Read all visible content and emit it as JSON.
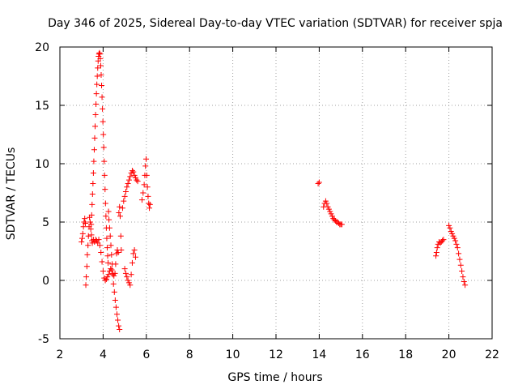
{
  "chart_data": {
    "type": "scatter",
    "title": "Day 346 of 2025, Sidereal Day-to-day VTEC variation (SDTVAR) for receiver spja",
    "xlabel": "GPS time / hours",
    "ylabel": "SDTVAR / TECUs",
    "xlim": [
      2,
      22
    ],
    "ylim": [
      -5,
      20
    ],
    "xticks": [
      "2",
      "4",
      "6",
      "8",
      "10",
      "12",
      "14",
      "16",
      "18",
      "20",
      "22"
    ],
    "yticks": [
      "-5",
      "0",
      "5",
      "10",
      "15",
      "20"
    ],
    "grid": true,
    "marker": "plus",
    "color": "#ff0000",
    "series": [
      {
        "name": "SDTVAR",
        "points": [
          [
            3.0,
            3.3
          ],
          [
            3.03,
            3.6
          ],
          [
            3.06,
            4.0
          ],
          [
            3.09,
            4.6
          ],
          [
            3.12,
            5.0
          ],
          [
            3.15,
            5.3
          ],
          [
            3.18,
            4.9
          ],
          [
            3.2,
            -0.4
          ],
          [
            3.22,
            0.3
          ],
          [
            3.25,
            1.2
          ],
          [
            3.27,
            2.2
          ],
          [
            3.3,
            3.0
          ],
          [
            3.32,
            3.8
          ],
          [
            3.35,
            4.6
          ],
          [
            3.37,
            5.4
          ],
          [
            3.4,
            5.0
          ],
          [
            3.43,
            4.4
          ],
          [
            3.46,
            3.9
          ],
          [
            3.48,
            3.4
          ],
          [
            3.5,
            3.2
          ],
          [
            3.45,
            4.8
          ],
          [
            3.47,
            5.6
          ],
          [
            3.49,
            6.5
          ],
          [
            3.51,
            7.4
          ],
          [
            3.53,
            8.3
          ],
          [
            3.55,
            9.2
          ],
          [
            3.57,
            10.2
          ],
          [
            3.59,
            11.2
          ],
          [
            3.61,
            12.2
          ],
          [
            3.63,
            13.2
          ],
          [
            3.65,
            14.2
          ],
          [
            3.67,
            15.1
          ],
          [
            3.69,
            16.0
          ],
          [
            3.71,
            16.8
          ],
          [
            3.73,
            17.5
          ],
          [
            3.75,
            18.2
          ],
          [
            3.77,
            18.8
          ],
          [
            3.79,
            19.2
          ],
          [
            3.81,
            19.4
          ],
          [
            3.83,
            19.5
          ],
          [
            3.85,
            19.4
          ],
          [
            3.87,
            19.0
          ],
          [
            3.89,
            18.4
          ],
          [
            3.91,
            17.6
          ],
          [
            3.93,
            16.7
          ],
          [
            3.95,
            15.7
          ],
          [
            3.97,
            14.7
          ],
          [
            3.99,
            13.6
          ],
          [
            4.01,
            12.5
          ],
          [
            4.03,
            11.4
          ],
          [
            4.05,
            10.2
          ],
          [
            4.07,
            9.0
          ],
          [
            4.09,
            7.8
          ],
          [
            4.11,
            6.6
          ],
          [
            4.13,
            5.5
          ],
          [
            4.15,
            4.5
          ],
          [
            4.17,
            3.6
          ],
          [
            4.19,
            2.8
          ],
          [
            4.21,
            2.1
          ],
          [
            4.23,
            1.5
          ],
          [
            3.55,
            3.5
          ],
          [
            3.6,
            3.3
          ],
          [
            3.65,
            3.5
          ],
          [
            3.7,
            3.4
          ],
          [
            3.75,
            3.2
          ],
          [
            3.8,
            3.5
          ],
          [
            3.85,
            3.0
          ],
          [
            3.9,
            2.4
          ],
          [
            3.95,
            1.6
          ],
          [
            4.0,
            0.8
          ],
          [
            4.05,
            0.2
          ],
          [
            4.1,
            0.0
          ],
          [
            4.15,
            0.1
          ],
          [
            4.2,
            0.3
          ],
          [
            4.25,
            0.5
          ],
          [
            4.3,
            0.8
          ],
          [
            4.35,
            1.0
          ],
          [
            4.4,
            0.9
          ],
          [
            4.45,
            0.6
          ],
          [
            4.5,
            0.4
          ],
          [
            4.25,
            5.9
          ],
          [
            4.27,
            5.2
          ],
          [
            4.3,
            4.5
          ],
          [
            4.33,
            3.8
          ],
          [
            4.36,
            3.0
          ],
          [
            4.39,
            2.2
          ],
          [
            4.42,
            1.4
          ],
          [
            4.45,
            0.5
          ],
          [
            4.48,
            -0.3
          ],
          [
            4.52,
            -1.0
          ],
          [
            4.56,
            -1.7
          ],
          [
            4.6,
            -2.3
          ],
          [
            4.64,
            -2.9
          ],
          [
            4.68,
            -3.4
          ],
          [
            4.72,
            -3.9
          ],
          [
            4.76,
            -4.2
          ],
          [
            4.55,
            0.6
          ],
          [
            4.58,
            1.4
          ],
          [
            4.62,
            2.3
          ],
          [
            4.66,
            2.6
          ],
          [
            4.7,
            2.4
          ],
          [
            4.73,
            5.8
          ],
          [
            4.76,
            6.3
          ],
          [
            4.79,
            5.5
          ],
          [
            4.82,
            3.8
          ],
          [
            4.84,
            2.6
          ],
          [
            4.9,
            6.2
          ],
          [
            4.95,
            6.8
          ],
          [
            5.0,
            7.2
          ],
          [
            5.05,
            7.6
          ],
          [
            5.1,
            8.0
          ],
          [
            5.15,
            8.3
          ],
          [
            5.2,
            8.6
          ],
          [
            5.25,
            8.9
          ],
          [
            5.3,
            9.2
          ],
          [
            5.35,
            9.4
          ],
          [
            5.4,
            9.3
          ],
          [
            5.45,
            9.0
          ],
          [
            5.5,
            8.8
          ],
          [
            5.55,
            8.6
          ],
          [
            5.6,
            8.5
          ],
          [
            5.0,
            1.0
          ],
          [
            5.05,
            0.6
          ],
          [
            5.1,
            0.3
          ],
          [
            5.15,
            0.0
          ],
          [
            5.2,
            -0.2
          ],
          [
            5.25,
            -0.4
          ],
          [
            5.3,
            0.5
          ],
          [
            5.35,
            1.5
          ],
          [
            5.4,
            2.3
          ],
          [
            5.45,
            2.6
          ],
          [
            5.5,
            2.0
          ],
          [
            5.8,
            6.9
          ],
          [
            5.85,
            7.5
          ],
          [
            5.9,
            8.2
          ],
          [
            5.93,
            9.0
          ],
          [
            5.96,
            9.8
          ],
          [
            5.99,
            10.4
          ],
          [
            6.02,
            9.0
          ],
          [
            6.05,
            8.0
          ],
          [
            6.08,
            7.2
          ],
          [
            6.11,
            6.6
          ],
          [
            6.14,
            6.2
          ],
          [
            6.17,
            6.5
          ],
          [
            13.95,
            8.3
          ],
          [
            14.0,
            8.4
          ],
          [
            14.2,
            6.3
          ],
          [
            14.25,
            6.6
          ],
          [
            14.3,
            6.8
          ],
          [
            14.35,
            6.6
          ],
          [
            14.4,
            6.3
          ],
          [
            14.45,
            6.1
          ],
          [
            14.5,
            5.9
          ],
          [
            14.55,
            5.7
          ],
          [
            14.6,
            5.5
          ],
          [
            14.65,
            5.3
          ],
          [
            14.7,
            5.2
          ],
          [
            14.75,
            5.1
          ],
          [
            14.8,
            5.0
          ],
          [
            14.85,
            5.0
          ],
          [
            14.9,
            4.9
          ],
          [
            14.95,
            4.8
          ],
          [
            15.0,
            4.8
          ],
          [
            15.05,
            4.8
          ],
          [
            19.4,
            2.1
          ],
          [
            19.43,
            2.4
          ],
          [
            19.46,
            2.8
          ],
          [
            19.5,
            3.1
          ],
          [
            19.55,
            3.3
          ],
          [
            19.6,
            3.2
          ],
          [
            19.65,
            3.3
          ],
          [
            19.7,
            3.4
          ],
          [
            19.75,
            3.5
          ],
          [
            20.0,
            4.7
          ],
          [
            20.05,
            4.5
          ],
          [
            20.1,
            4.2
          ],
          [
            20.15,
            4.0
          ],
          [
            20.2,
            3.8
          ],
          [
            20.25,
            3.6
          ],
          [
            20.3,
            3.4
          ],
          [
            20.35,
            3.1
          ],
          [
            20.4,
            2.8
          ],
          [
            20.45,
            2.3
          ],
          [
            20.5,
            1.8
          ],
          [
            20.55,
            1.3
          ],
          [
            20.6,
            0.8
          ],
          [
            20.65,
            0.3
          ],
          [
            20.7,
            -0.1
          ],
          [
            20.75,
            -0.4
          ]
        ]
      }
    ]
  }
}
